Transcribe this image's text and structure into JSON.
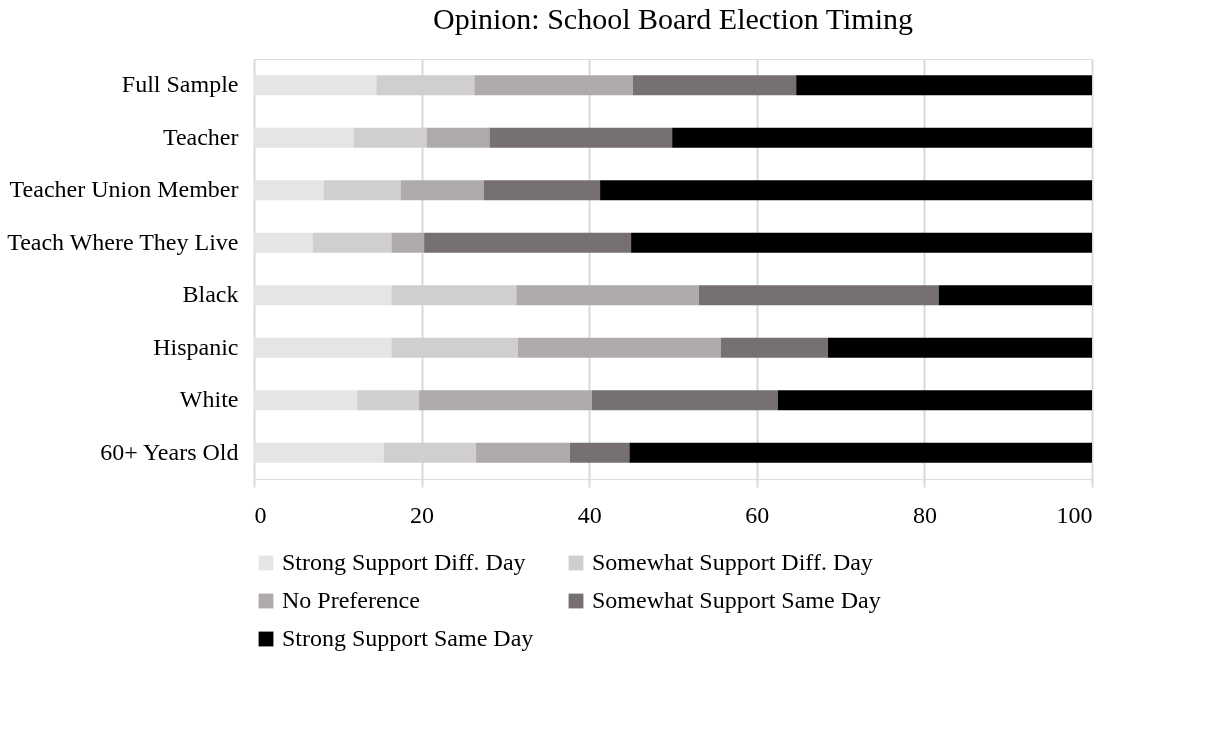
{
  "chart_data": {
    "type": "bar",
    "orientation": "horizontal",
    "stacked": true,
    "title": "Opinion: School Board Election Timing",
    "categories": [
      "Full Sample",
      "Teacher",
      "Teacher Union Member",
      "Teach Where They Live",
      "Black",
      "Hispanic",
      "White",
      "60+ Years Old"
    ],
    "series": [
      {
        "name": "Strong Support Diff. Day",
        "color": "#e5e5e5",
        "values": [
          14.6,
          11.9,
          8.3,
          7.0,
          16.4,
          16.4,
          12.3,
          15.5
        ]
      },
      {
        "name": "Somewhat Support Diff. Day",
        "color": "#d0cecf",
        "values": [
          11.7,
          8.7,
          9.2,
          9.4,
          14.9,
          15.1,
          7.4,
          11.0
        ]
      },
      {
        "name": "No Preference",
        "color": "#aeabaa",
        "values": [
          18.9,
          7.5,
          9.9,
          3.9,
          21.8,
          24.2,
          20.6,
          11.2
        ]
      },
      {
        "name": "Somewhat Support Same Day",
        "color": "#767170",
        "values": [
          19.5,
          21.8,
          13.9,
          24.7,
          28.6,
          12.8,
          22.2,
          7.1
        ]
      },
      {
        "name": "Strong Support Same Day",
        "color": "#000000",
        "values": [
          35.3,
          50.1,
          58.7,
          55.0,
          18.3,
          31.5,
          37.5,
          55.2
        ]
      }
    ],
    "xlim": [
      0,
      100
    ],
    "xticks": [
      0,
      20,
      40,
      60,
      80,
      100
    ],
    "grid": "x",
    "legend": "bottom"
  }
}
